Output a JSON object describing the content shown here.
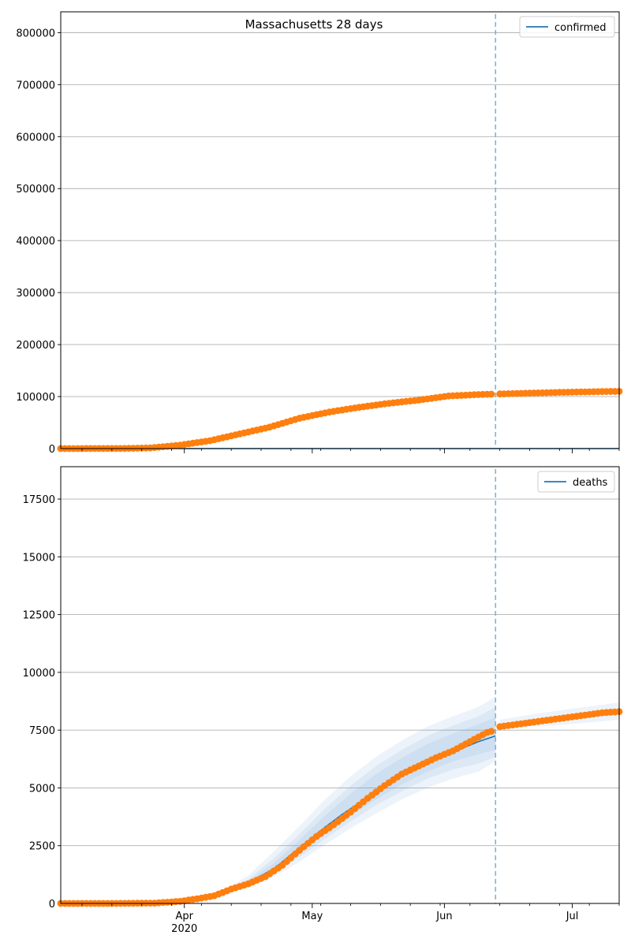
{
  "figure": {
    "title": "Massachusetts 28 days"
  },
  "chart_data": [
    {
      "type": "line",
      "name": "confirmed",
      "legend": {
        "label": "confirmed",
        "position": "top-right"
      },
      "x_range": [
        "2020-03-03",
        "2020-07-12"
      ],
      "ylim": [
        0,
        840000
      ],
      "yticks": [
        0,
        100000,
        200000,
        300000,
        400000,
        500000,
        600000,
        700000,
        800000
      ],
      "grid": "horizontal",
      "vertical_marker_date": "2020-06-13",
      "observed_points": [
        [
          "2020-03-03",
          2
        ],
        [
          "2020-03-10",
          92
        ],
        [
          "2020-03-17",
          218
        ],
        [
          "2020-03-24",
          1159
        ],
        [
          "2020-03-31",
          6620
        ],
        [
          "2020-04-07",
          15202
        ],
        [
          "2020-04-14",
          28163
        ],
        [
          "2020-04-21",
          41199
        ],
        [
          "2020-04-28",
          58302
        ],
        [
          "2020-05-05",
          70271
        ],
        [
          "2020-05-12",
          79332
        ],
        [
          "2020-05-19",
          87052
        ],
        [
          "2020-05-26",
          93271
        ],
        [
          "2020-06-02",
          101163
        ],
        [
          "2020-06-09",
          103889
        ],
        [
          "2020-06-12",
          104667
        ],
        [
          "2020-06-14",
          105059
        ],
        [
          "2020-06-21",
          106650
        ],
        [
          "2020-06-28",
          108070
        ],
        [
          "2020-07-05",
          109143
        ],
        [
          "2020-07-12",
          110137
        ]
      ],
      "forecast_line": [
        [
          "2020-03-03",
          0
        ],
        [
          "2020-07-12",
          0
        ]
      ]
    },
    {
      "type": "line",
      "name": "deaths",
      "legend": {
        "label": "deaths",
        "position": "top-right"
      },
      "x_range": [
        "2020-03-03",
        "2020-07-12"
      ],
      "ylim": [
        0,
        18900
      ],
      "yticks": [
        0,
        2500,
        5000,
        7500,
        10000,
        12500,
        15000,
        17500
      ],
      "xticks": [
        {
          "date": "2020-04-01",
          "label": "Apr",
          "sublabel": "2020"
        },
        {
          "date": "2020-05-01",
          "label": "May"
        },
        {
          "date": "2020-06-01",
          "label": "Jun"
        },
        {
          "date": "2020-07-01",
          "label": "Jul"
        }
      ],
      "grid": "horizontal",
      "vertical_marker_date": "2020-06-13",
      "observed_points": [
        [
          "2020-03-03",
          0
        ],
        [
          "2020-03-15",
          0
        ],
        [
          "2020-03-25",
          15
        ],
        [
          "2020-03-31",
          90
        ],
        [
          "2020-04-04",
          200
        ],
        [
          "2020-04-08",
          330
        ],
        [
          "2020-04-12",
          620
        ],
        [
          "2020-04-16",
          850
        ],
        [
          "2020-04-20",
          1160
        ],
        [
          "2020-04-24",
          1650
        ],
        [
          "2020-04-28",
          2300
        ],
        [
          "2020-05-02",
          2900
        ],
        [
          "2020-05-06",
          3400
        ],
        [
          "2020-05-10",
          3950
        ],
        [
          "2020-05-14",
          4550
        ],
        [
          "2020-05-18",
          5100
        ],
        [
          "2020-05-22",
          5600
        ],
        [
          "2020-05-26",
          5950
        ],
        [
          "2020-05-30",
          6300
        ],
        [
          "2020-06-03",
          6600
        ],
        [
          "2020-06-07",
          7000
        ],
        [
          "2020-06-11",
          7400
        ],
        [
          "2020-06-12",
          7450
        ],
        [
          "2020-06-14",
          7650
        ],
        [
          "2020-06-18",
          7750
        ],
        [
          "2020-06-22",
          7850
        ],
        [
          "2020-06-26",
          7950
        ],
        [
          "2020-06-30",
          8050
        ],
        [
          "2020-07-04",
          8150
        ],
        [
          "2020-07-08",
          8250
        ],
        [
          "2020-07-12",
          8300
        ]
      ],
      "forecast_line": [
        [
          "2020-04-10",
          450
        ],
        [
          "2020-04-14",
          800
        ],
        [
          "2020-04-18",
          1100
        ],
        [
          "2020-04-22",
          1500
        ],
        [
          "2020-04-26",
          2100
        ],
        [
          "2020-04-30",
          2700
        ],
        [
          "2020-05-04",
          3300
        ],
        [
          "2020-05-08",
          3850
        ],
        [
          "2020-05-12",
          4350
        ],
        [
          "2020-05-16",
          4850
        ],
        [
          "2020-05-20",
          5300
        ],
        [
          "2020-05-24",
          5700
        ],
        [
          "2020-05-28",
          6050
        ],
        [
          "2020-06-01",
          6400
        ],
        [
          "2020-06-05",
          6700
        ],
        [
          "2020-06-09",
          7000
        ],
        [
          "2020-06-13",
          7250
        ]
      ],
      "uncertainty_bands": [
        {
          "alpha": 0.12,
          "points": [
            [
              "2020-04-10",
              550,
              400
            ],
            [
              "2020-04-16",
              1200,
              700
            ],
            [
              "2020-04-22",
              2250,
              1150
            ],
            [
              "2020-04-28",
              3350,
              1800
            ],
            [
              "2020-05-04",
              4500,
              2550
            ],
            [
              "2020-05-10",
              5500,
              3250
            ],
            [
              "2020-05-16",
              6350,
              3900
            ],
            [
              "2020-05-22",
              7050,
              4500
            ],
            [
              "2020-05-28",
              7650,
              5000
            ],
            [
              "2020-06-03",
              8100,
              5400
            ],
            [
              "2020-06-09",
              8500,
              5700
            ],
            [
              "2020-06-13",
              8950,
              6150
            ]
          ]
        },
        {
          "alpha": 0.12,
          "points": [
            [
              "2020-04-10",
              500,
              420
            ],
            [
              "2020-04-16",
              1050,
              750
            ],
            [
              "2020-04-22",
              1950,
              1300
            ],
            [
              "2020-04-28",
              3000,
              2000
            ],
            [
              "2020-05-04",
              4100,
              2800
            ],
            [
              "2020-05-10",
              5100,
              3550
            ],
            [
              "2020-05-16",
              5950,
              4250
            ],
            [
              "2020-05-22",
              6650,
              4850
            ],
            [
              "2020-05-28",
              7250,
              5400
            ],
            [
              "2020-06-03",
              7700,
              5800
            ],
            [
              "2020-06-09",
              8100,
              6050
            ],
            [
              "2020-06-13",
              8500,
              6350
            ]
          ]
        },
        {
          "alpha": 0.13,
          "points": [
            [
              "2020-04-10",
              470,
              440
            ],
            [
              "2020-04-16",
              950,
              800
            ],
            [
              "2020-04-22",
              1750,
              1420
            ],
            [
              "2020-04-28",
              2750,
              2200
            ],
            [
              "2020-05-04",
              3800,
              3000
            ],
            [
              "2020-05-10",
              4750,
              3800
            ],
            [
              "2020-05-16",
              5600,
              4500
            ],
            [
              "2020-05-22",
              6300,
              5150
            ],
            [
              "2020-05-28",
              6900,
              5700
            ],
            [
              "2020-06-03",
              7350,
              6150
            ],
            [
              "2020-06-09",
              7750,
              6450
            ],
            [
              "2020-06-13",
              8050,
              6650
            ]
          ]
        }
      ],
      "post_band": {
        "alpha": 0.12,
        "points": [
          [
            "2020-06-14",
            7950,
            7550
          ],
          [
            "2020-06-22",
            8200,
            7650
          ],
          [
            "2020-06-30",
            8400,
            7750
          ],
          [
            "2020-07-06",
            8550,
            7850
          ],
          [
            "2020-07-12",
            8700,
            7950
          ]
        ]
      }
    }
  ],
  "colors": {
    "line": "#1f77b4",
    "points": "#ff7f0e",
    "band": "#6a9fd8",
    "marker": "#7fb3d8",
    "grid": "#b0b0b0"
  }
}
